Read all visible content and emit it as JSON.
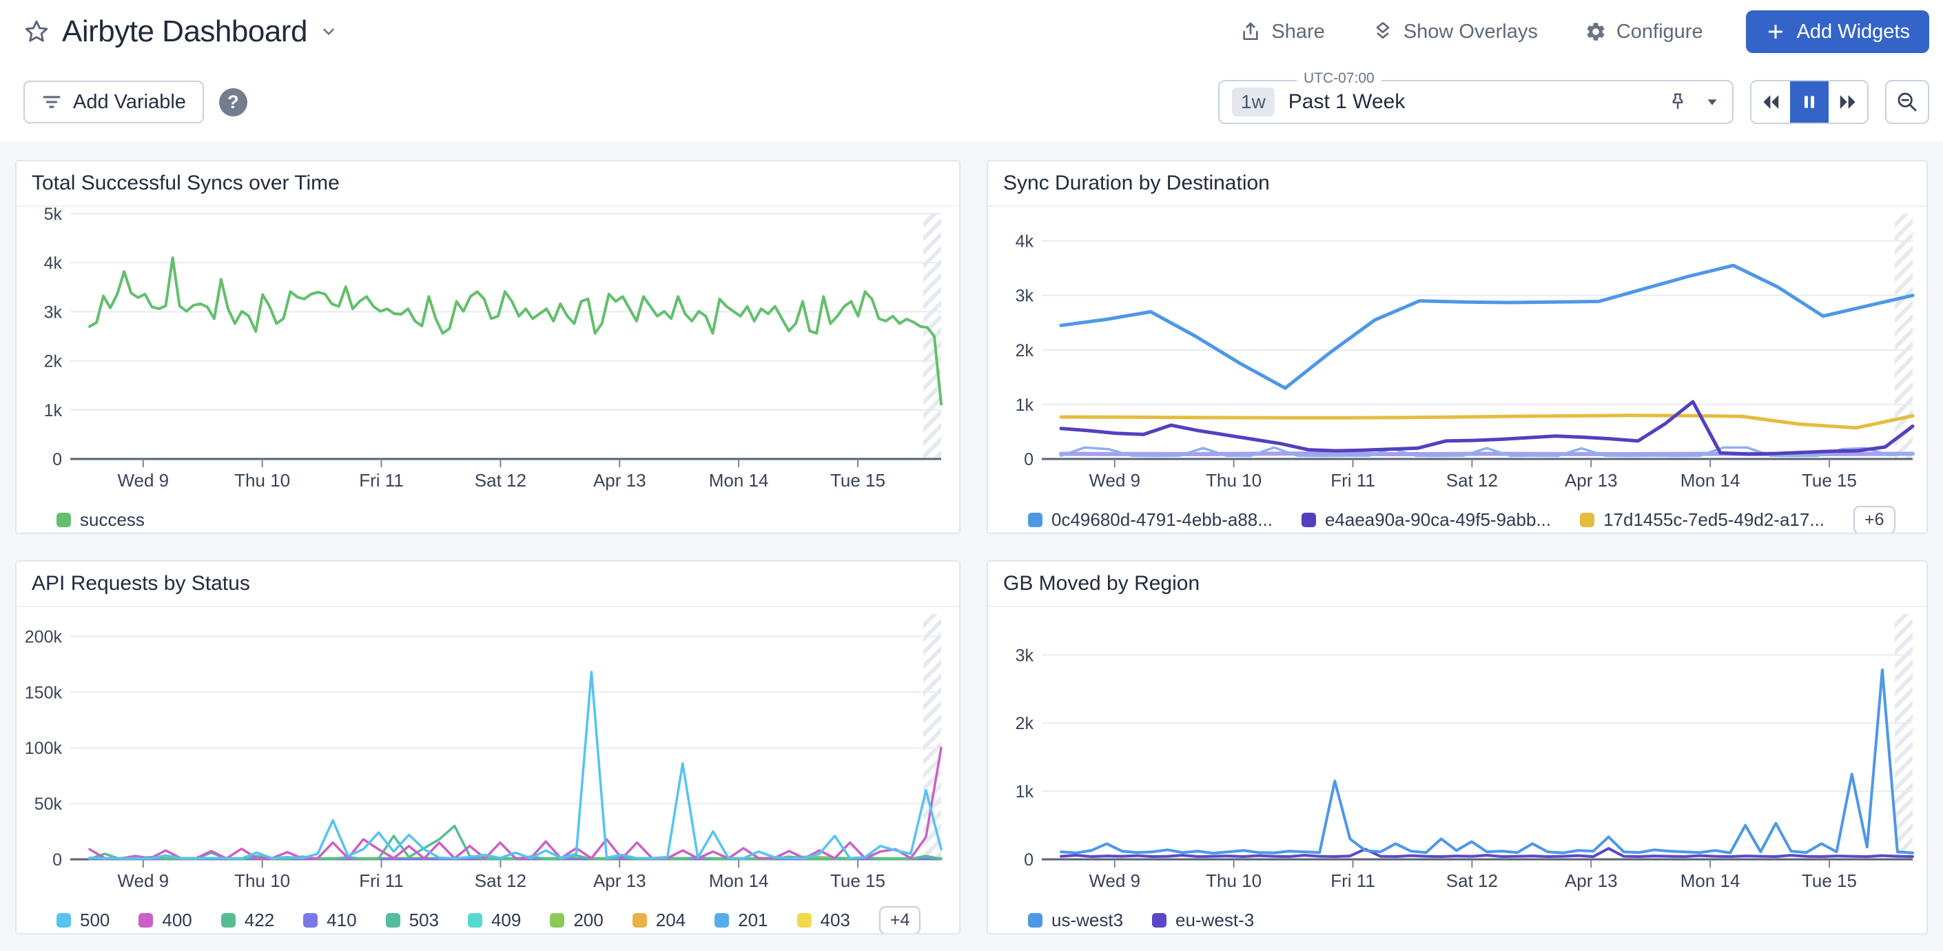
{
  "header": {
    "title": "Airbyte Dashboard",
    "share_label": "Share",
    "show_overlays_label": "Show Overlays",
    "configure_label": "Configure",
    "add_widgets_label": "Add Widgets",
    "accent_color": "#3464c8"
  },
  "toolbar": {
    "add_variable_label": "Add Variable",
    "timezone_label": "UTC-07:00",
    "range_shortcut": "1w",
    "range_label": "Past 1 Week"
  },
  "icons": {
    "star": "☆",
    "chevron-down": "▾",
    "share": "↥",
    "show-overlays": "◇",
    "configure": "⚙",
    "add": "+",
    "filter": "≡",
    "help": "?",
    "pin": "📌",
    "caret-down": "▾",
    "rewind": "«",
    "pause": "❚❚",
    "fast-forward": "»",
    "zoom-out": "⊖"
  },
  "chart_data": [
    {
      "type": "line",
      "name": "total-successful-syncs",
      "title": "Total Successful Syncs over Time",
      "x_tick_labels": [
        "Wed 9",
        "Thu 10",
        "Fri 11",
        "Sat 12",
        "Apr 13",
        "Mon 14",
        "Tue 15"
      ],
      "ylim": [
        0,
        5000
      ],
      "y_ticks": [
        {
          "value": 0,
          "label": "0"
        },
        {
          "value": 1000,
          "label": "1k"
        },
        {
          "value": 2000,
          "label": "2k"
        },
        {
          "value": 3000,
          "label": "3k"
        },
        {
          "value": 4000,
          "label": "4k"
        },
        {
          "value": 5000,
          "label": "5k"
        }
      ],
      "grid": true,
      "legend_position": "bottom",
      "series": [
        {
          "name": "success",
          "color": "#63bf6d",
          "width": 4,
          "values": [
            2700,
            2780,
            3320,
            3080,
            3360,
            3820,
            3380,
            3290,
            3360,
            3100,
            3060,
            3120,
            4100,
            3120,
            3010,
            3130,
            3160,
            3100,
            2860,
            3660,
            3060,
            2760,
            3010,
            2910,
            2600,
            3350,
            3110,
            2760,
            2860,
            3410,
            3300,
            3260,
            3360,
            3400,
            3360,
            3160,
            3110,
            3510,
            3060,
            3210,
            3310,
            3110,
            3010,
            3060,
            2960,
            2950,
            3060,
            2810,
            2710,
            3310,
            2860,
            2560,
            2660,
            3210,
            3010,
            3310,
            3410,
            3260,
            2860,
            2910,
            3410,
            3210,
            2910,
            3060,
            2860,
            2960,
            3060,
            2810,
            3160,
            2910,
            2760,
            3210,
            3260,
            2560,
            2760,
            3360,
            3210,
            3310,
            3060,
            2810,
            3310,
            3110,
            2910,
            3010,
            2860,
            3310,
            2960,
            2810,
            3010,
            2910,
            2560,
            3260,
            3110,
            3010,
            2910,
            3110,
            2810,
            3060,
            2960,
            3110,
            2860,
            2610,
            2760,
            3210,
            2610,
            2560,
            3310,
            2760,
            2910,
            3110,
            3210,
            2910,
            3410,
            3260,
            2860,
            2810,
            2910,
            2760,
            2850,
            2790,
            2700,
            2680,
            2500,
            1120
          ]
        }
      ]
    },
    {
      "type": "line",
      "name": "sync-duration-by-destination",
      "title": "Sync Duration by Destination",
      "x_tick_labels": [
        "Wed 9",
        "Thu 10",
        "Fri 11",
        "Sat 12",
        "Apr 13",
        "Mon 14",
        "Tue 15"
      ],
      "ylim": [
        0,
        4500
      ],
      "y_ticks": [
        {
          "value": 0,
          "label": "0"
        },
        {
          "value": 1000,
          "label": "1k"
        },
        {
          "value": 2000,
          "label": "2k"
        },
        {
          "value": 3000,
          "label": "3k"
        },
        {
          "value": 4000,
          "label": "4k"
        }
      ],
      "grid": true,
      "legend_position": "bottom",
      "legend_overflow": "+6",
      "series": [
        {
          "name": "0c49680d-4791-4ebb-a88...",
          "color": "#4e97e6",
          "width": 5,
          "values": [
            2450,
            2560,
            2700,
            2250,
            1750,
            1300,
            1950,
            2550,
            2900,
            2880,
            2870,
            2880,
            2890,
            3120,
            3350,
            3550,
            3150,
            2620,
            2810,
            3000
          ]
        },
        {
          "name": "e4aea90a-90ca-49f5-9abb...",
          "color": "#5240bf",
          "width": 5,
          "values": [
            560,
            520,
            470,
            450,
            620,
            520,
            440,
            360,
            280,
            170,
            150,
            160,
            180,
            200,
            330,
            340,
            360,
            390,
            420,
            400,
            370,
            330,
            650,
            1050,
            110,
            90,
            100,
            120,
            140,
            150,
            220,
            600
          ]
        },
        {
          "name": "17d1455c-7ed5-49d2-a17...",
          "color": "#e5bc40",
          "width": 5,
          "values": [
            770,
            768,
            762,
            758,
            755,
            756,
            760,
            770,
            782,
            790,
            800,
            795,
            780,
            640,
            570,
            790
          ]
        },
        {
          "name": "unlabeled-a",
          "color": "#8fb0ec",
          "width": 3.5,
          "in_legend": false,
          "values": [
            60,
            210,
            180,
            60,
            55,
            60,
            200,
            60,
            55,
            210,
            60,
            55,
            60,
            60,
            190,
            60,
            55,
            60,
            200,
            55,
            60,
            55,
            195,
            60,
            55,
            60,
            55,
            60,
            210,
            210,
            60,
            55,
            60,
            180,
            200,
            70,
            90
          ]
        },
        {
          "name": "unlabeled-b",
          "color": "#a79ff0",
          "width": 6,
          "in_legend": false,
          "values": [
            95,
            90,
            92,
            88,
            95,
            100,
            92,
            88,
            90,
            95,
            92,
            90,
            88,
            92,
            95,
            90,
            88,
            92,
            95
          ]
        }
      ]
    },
    {
      "type": "line",
      "name": "api-requests-by-status",
      "title": "API Requests by Status",
      "x_tick_labels": [
        "Wed 9",
        "Thu 10",
        "Fri 11",
        "Sat 12",
        "Apr 13",
        "Mon 14",
        "Tue 15"
      ],
      "ylim": [
        0,
        220000
      ],
      "y_ticks": [
        {
          "value": 0,
          "label": "0"
        },
        {
          "value": 50000,
          "label": "50k"
        },
        {
          "value": 100000,
          "label": "100k"
        },
        {
          "value": 150000,
          "label": "150k"
        },
        {
          "value": 200000,
          "label": "200k"
        }
      ],
      "grid": true,
      "legend_position": "bottom",
      "legend_overflow": "+4",
      "series": [
        {
          "name": "500",
          "color": "#56c3f1",
          "width": 3.5,
          "values": [
            1500,
            800,
            1000,
            900,
            700,
            3500,
            900,
            800,
            1200,
            900,
            800,
            6000,
            1000,
            2000,
            1200,
            5000,
            35000,
            3000,
            9000,
            24000,
            7000,
            22000,
            9000,
            1500,
            900,
            2000,
            4000,
            1200,
            6000,
            1000,
            8000,
            1200,
            5000,
            168000,
            1500,
            4000,
            1000,
            1200,
            2000,
            86000,
            1500,
            25000,
            1200,
            900,
            7000,
            2000,
            1000,
            1200,
            5000,
            21000,
            1000,
            2000,
            12000,
            8000,
            5000,
            62000,
            9000
          ]
        },
        {
          "name": "400",
          "color": "#cb60c5",
          "width": 3.5,
          "values": [
            9000,
            1000,
            800,
            3000,
            900,
            8000,
            1000,
            900,
            7500,
            800,
            9500,
            900,
            1000,
            6500,
            800,
            900,
            15000,
            1000,
            18000,
            9000,
            1000,
            12000,
            800,
            15000,
            900,
            12000,
            800,
            15000,
            1000,
            900,
            16000,
            900,
            10000,
            900,
            18000,
            800,
            15000,
            900,
            1000,
            8000,
            900,
            7000,
            800,
            10000,
            900,
            1000,
            7500,
            900,
            8000,
            1000,
            15000,
            900,
            7000,
            9000,
            1000,
            20000,
            100000
          ]
        },
        {
          "name": "422",
          "color": "#56bd92",
          "width": 3.5,
          "values": [
            500,
            5000,
            400,
            500,
            2000,
            400,
            500,
            400,
            6000,
            500,
            400,
            3000,
            500,
            400,
            2500,
            400,
            500,
            2000,
            400,
            500,
            21000,
            2000,
            10000,
            18000,
            30000,
            3000,
            500,
            400,
            500,
            2500,
            400,
            500,
            3500,
            400,
            500,
            2000,
            400,
            500,
            400,
            500,
            2000,
            400,
            500,
            400,
            500,
            400,
            2500,
            500,
            400,
            500,
            400,
            2000,
            500,
            400,
            500,
            3000,
            400
          ]
        },
        {
          "name": "410",
          "color": "#7b77e8",
          "width": 3,
          "values": [
            300,
            280,
            320,
            300,
            290,
            310,
            300,
            280,
            300,
            320,
            300,
            290,
            300,
            310,
            280,
            300,
            320,
            290,
            300,
            310
          ]
        },
        {
          "name": "503",
          "color": "#53bd9e",
          "width": 3,
          "values": [
            600,
            550,
            700,
            600,
            580,
            640,
            600,
            560,
            620,
            600,
            640,
            580,
            600,
            620,
            560,
            600,
            640,
            580,
            620,
            600
          ]
        },
        {
          "name": "409",
          "color": "#55d8d0",
          "width": 3,
          "values": [
            400,
            380,
            420,
            400,
            390,
            410,
            400,
            380,
            400,
            420,
            400,
            390,
            400,
            410,
            380,
            400,
            420,
            390,
            400,
            410
          ]
        },
        {
          "name": "200",
          "color": "#8bca59",
          "width": 3,
          "values": [
            1200,
            1100,
            1300,
            1150,
            1250,
            1200,
            1100,
            1300,
            1200,
            1150,
            1250,
            1200,
            1100,
            1300,
            1200,
            1150,
            2500,
            1200,
            1100,
            1200
          ]
        },
        {
          "name": "204",
          "color": "#eab146",
          "width": 3,
          "values": [
            800,
            780,
            820,
            800,
            790,
            810,
            800,
            780,
            800,
            820,
            800,
            790,
            800,
            810,
            780,
            800,
            820,
            790,
            800,
            810
          ]
        },
        {
          "name": "201",
          "color": "#55acee",
          "width": 3,
          "values": [
            250,
            240,
            260,
            250,
            245,
            255,
            250,
            240,
            250,
            260,
            250,
            245,
            250,
            255,
            240,
            250,
            260,
            245,
            250,
            255
          ]
        },
        {
          "name": "403",
          "color": "#f2da4c",
          "width": 3,
          "values": [
            150,
            140,
            160,
            150,
            145,
            155,
            150,
            140,
            150,
            160,
            150,
            145,
            150,
            155,
            140,
            150,
            160,
            145,
            150,
            155
          ]
        }
      ]
    },
    {
      "type": "line",
      "name": "gb-moved-by-region",
      "title": "GB Moved by Region",
      "x_tick_labels": [
        "Wed 9",
        "Thu 10",
        "Fri 11",
        "Sat 12",
        "Apr 13",
        "Mon 14",
        "Tue 15"
      ],
      "ylim": [
        0,
        3600
      ],
      "y_ticks": [
        {
          "value": 0,
          "label": "0"
        },
        {
          "value": 1000,
          "label": "1k"
        },
        {
          "value": 2000,
          "label": "2k"
        },
        {
          "value": 3000,
          "label": "3k"
        }
      ],
      "grid": true,
      "legend_position": "bottom",
      "series": [
        {
          "name": "us-west3",
          "color": "#4e97e6",
          "width": 4,
          "values": [
            110,
            95,
            130,
            230,
            120,
            100,
            110,
            140,
            100,
            120,
            90,
            110,
            130,
            100,
            95,
            120,
            110,
            100,
            1150,
            300,
            130,
            110,
            230,
            120,
            100,
            300,
            130,
            260,
            110,
            120,
            100,
            230,
            110,
            95,
            130,
            120,
            330,
            110,
            100,
            140,
            120,
            110,
            100,
            130,
            95,
            500,
            110,
            530,
            120,
            100,
            230,
            110,
            1250,
            180,
            2780,
            110,
            95
          ]
        },
        {
          "name": "eu-west-3",
          "color": "#5a49c4",
          "width": 4,
          "values": [
            45,
            60,
            40,
            50,
            45,
            55,
            40,
            45,
            60,
            40,
            45,
            50,
            40,
            55,
            45,
            40,
            60,
            45,
            40,
            50,
            150,
            45,
            40,
            55,
            45,
            40,
            50,
            45,
            60,
            40,
            45,
            50,
            40,
            45,
            55,
            40,
            160,
            45,
            40,
            50,
            45,
            40,
            55,
            45,
            40,
            50,
            45,
            40,
            60,
            45,
            40,
            50,
            45,
            40,
            55,
            45,
            40
          ]
        }
      ]
    }
  ]
}
